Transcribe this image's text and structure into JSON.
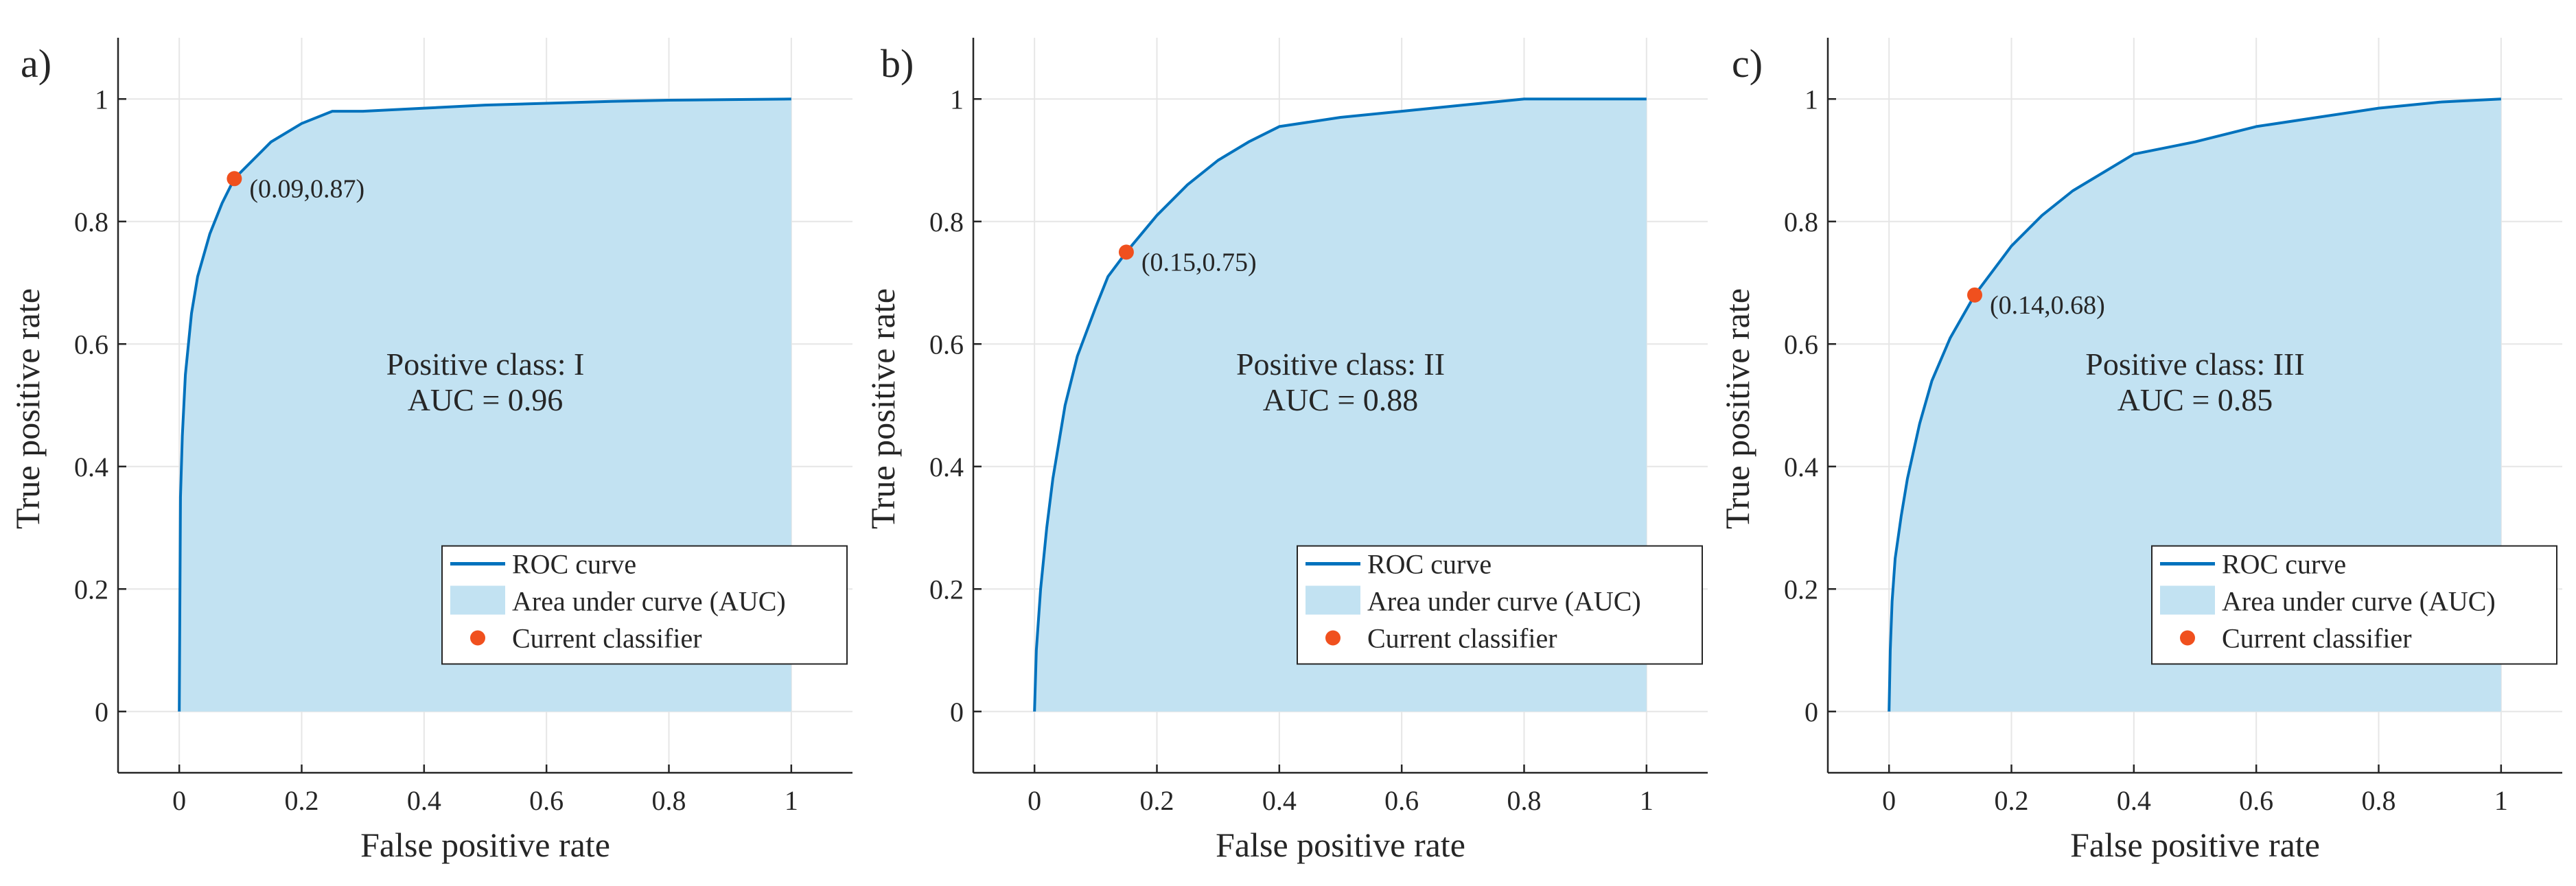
{
  "colors": {
    "curve": "#0072BD",
    "fill": "#C2E2F2",
    "marker": "#F0501E",
    "grid": "#e6e6e6",
    "axis": "#262626"
  },
  "legend_icons": [
    "line-icon",
    "area-swatch-icon",
    "dot-marker-icon"
  ],
  "chart_data": [
    {
      "type": "area",
      "panel_label": "a)",
      "xlabel": "False positive rate",
      "ylabel": "True positive rate",
      "xlim": [
        -0.1,
        1.1
      ],
      "ylim": [
        -0.1,
        1.1
      ],
      "xticks": [
        0,
        0.2,
        0.4,
        0.6,
        0.8,
        1
      ],
      "xtick_labels": [
        "0",
        "0.2",
        "0.4",
        "0.6",
        "0.8",
        "1"
      ],
      "yticks": [
        0,
        0.2,
        0.4,
        0.6,
        0.8,
        1
      ],
      "ytick_labels": [
        "0",
        "0.2",
        "0.4",
        "0.6",
        "0.8",
        "1"
      ],
      "grid": true,
      "legend_position": "bottom-right",
      "legend": [
        "ROC curve",
        "Area under curve (AUC)",
        "Current classifier"
      ],
      "annotation_class": "Positive class: I",
      "annotation_auc": "AUC = 0.96",
      "series": [
        {
          "name": "ROC curve",
          "x": [
            0,
            0.002,
            0.005,
            0.01,
            0.02,
            0.03,
            0.05,
            0.07,
            0.09,
            0.12,
            0.15,
            0.2,
            0.25,
            0.3,
            0.4,
            0.5,
            0.6,
            0.7,
            0.8,
            0.9,
            1.0
          ],
          "y": [
            0,
            0.35,
            0.45,
            0.55,
            0.65,
            0.71,
            0.78,
            0.83,
            0.87,
            0.9,
            0.93,
            0.96,
            0.98,
            0.98,
            0.985,
            0.99,
            0.993,
            0.996,
            0.998,
            0.999,
            1.0
          ]
        }
      ],
      "point": {
        "x": 0.09,
        "y": 0.87,
        "label": "(0.09,0.87)"
      }
    },
    {
      "type": "area",
      "panel_label": "b)",
      "xlabel": "False positive rate",
      "ylabel": "True positive rate",
      "xlim": [
        -0.1,
        1.1
      ],
      "ylim": [
        -0.1,
        1.1
      ],
      "xticks": [
        0,
        0.2,
        0.4,
        0.6,
        0.8,
        1
      ],
      "xtick_labels": [
        "0",
        "0.2",
        "0.4",
        "0.6",
        "0.8",
        "1"
      ],
      "yticks": [
        0,
        0.2,
        0.4,
        0.6,
        0.8,
        1
      ],
      "ytick_labels": [
        "0",
        "0.2",
        "0.4",
        "0.6",
        "0.8",
        "1"
      ],
      "grid": true,
      "legend_position": "bottom-right",
      "legend": [
        "ROC curve",
        "Area under curve (AUC)",
        "Current classifier"
      ],
      "annotation_class": "Positive class: II",
      "annotation_auc": "AUC = 0.88",
      "series": [
        {
          "name": "ROC curve",
          "x": [
            0,
            0.003,
            0.01,
            0.02,
            0.03,
            0.05,
            0.07,
            0.1,
            0.12,
            0.15,
            0.2,
            0.25,
            0.3,
            0.35,
            0.4,
            0.5,
            0.6,
            0.7,
            0.8,
            0.9,
            1.0
          ],
          "y": [
            0,
            0.1,
            0.2,
            0.3,
            0.38,
            0.5,
            0.58,
            0.66,
            0.71,
            0.75,
            0.81,
            0.86,
            0.9,
            0.93,
            0.955,
            0.97,
            0.98,
            0.99,
            1.0,
            1.0,
            1.0
          ]
        }
      ],
      "point": {
        "x": 0.15,
        "y": 0.75,
        "label": "(0.15,0.75)"
      }
    },
    {
      "type": "area",
      "panel_label": "c)",
      "xlabel": "False positive rate",
      "ylabel": "True positive rate",
      "xlim": [
        -0.1,
        1.1
      ],
      "ylim": [
        -0.1,
        1.1
      ],
      "xticks": [
        0,
        0.2,
        0.4,
        0.6,
        0.8,
        1
      ],
      "xtick_labels": [
        "0",
        "0.2",
        "0.4",
        "0.6",
        "0.8",
        "1"
      ],
      "yticks": [
        0,
        0.2,
        0.4,
        0.6,
        0.8,
        1
      ],
      "ytick_labels": [
        "0",
        "0.2",
        "0.4",
        "0.6",
        "0.8",
        "1"
      ],
      "grid": true,
      "legend_position": "bottom-right",
      "legend": [
        "ROC curve",
        "Area under curve (AUC)",
        "Current classifier"
      ],
      "annotation_class": "Positive class: III",
      "annotation_auc": "AUC = 0.85",
      "series": [
        {
          "name": "ROC curve",
          "x": [
            0,
            0.002,
            0.005,
            0.01,
            0.02,
            0.03,
            0.05,
            0.07,
            0.1,
            0.14,
            0.2,
            0.25,
            0.3,
            0.35,
            0.4,
            0.5,
            0.6,
            0.7,
            0.8,
            0.9,
            1.0
          ],
          "y": [
            0,
            0.1,
            0.18,
            0.25,
            0.32,
            0.38,
            0.47,
            0.54,
            0.61,
            0.68,
            0.76,
            0.81,
            0.85,
            0.88,
            0.91,
            0.93,
            0.955,
            0.97,
            0.985,
            0.995,
            1.0
          ]
        }
      ],
      "point": {
        "x": 0.14,
        "y": 0.68,
        "label": "(0.14,0.68)"
      }
    }
  ]
}
